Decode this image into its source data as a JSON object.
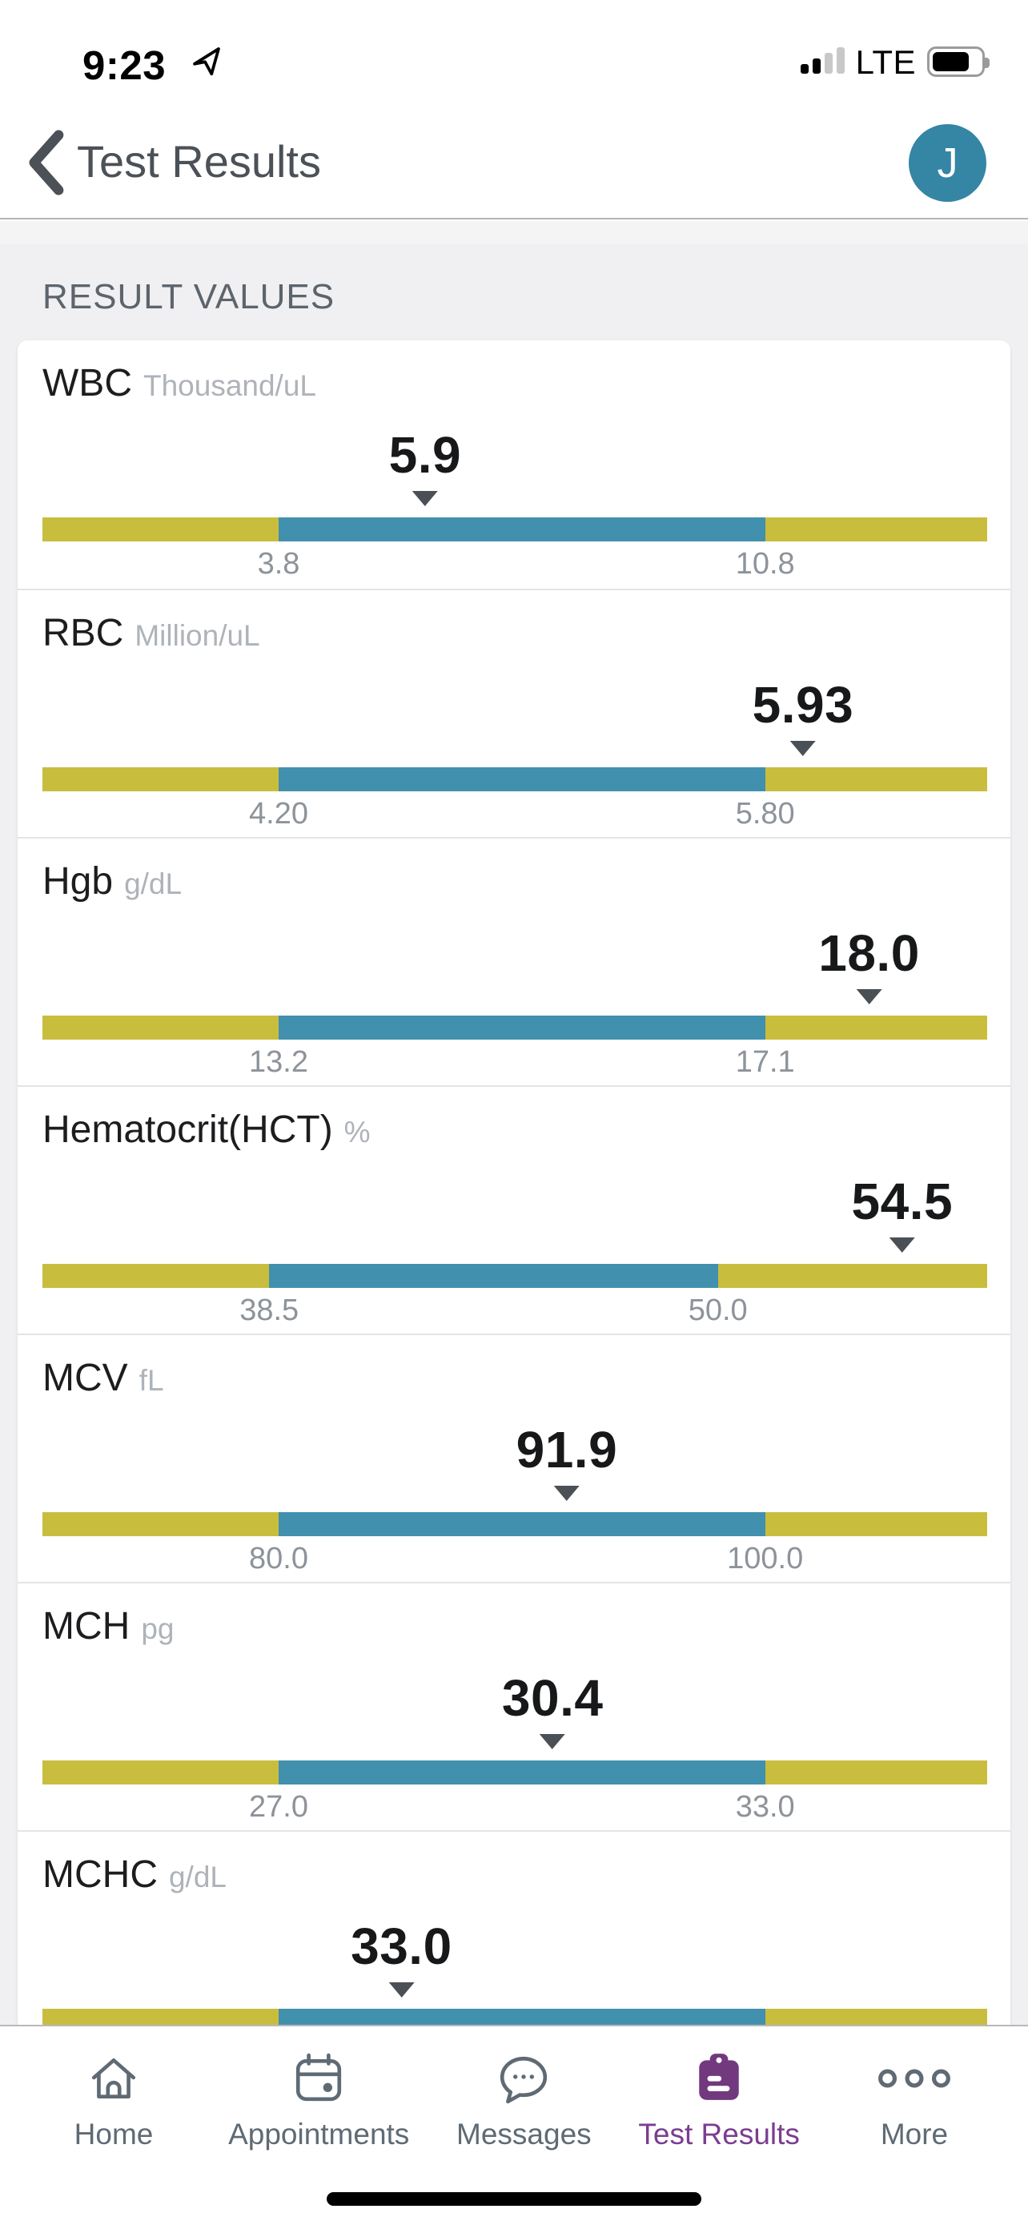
{
  "status_bar": {
    "time": "9:23",
    "network": "LTE"
  },
  "header": {
    "title": "Test Results",
    "avatar_initial": "J"
  },
  "section_title": "RESULT VALUES",
  "results": [
    {
      "name": "WBC",
      "unit": "Thousand/uL",
      "value": "5.9",
      "low_label": "3.8",
      "high_label": "10.8",
      "low_pct": 25,
      "high_pct": 76.5,
      "marker_pct": 40.5
    },
    {
      "name": "RBC",
      "unit": "Million/uL",
      "value": "5.93",
      "low_label": "4.20",
      "high_label": "5.80",
      "low_pct": 25,
      "high_pct": 76.5,
      "marker_pct": 80.5
    },
    {
      "name": "Hgb",
      "unit": "g/dL",
      "value": "18.0",
      "low_label": "13.2",
      "high_label": "17.1",
      "low_pct": 25,
      "high_pct": 76.5,
      "marker_pct": 87.5
    },
    {
      "name": "Hematocrit(HCT)",
      "unit": "%",
      "value": "54.5",
      "low_label": "38.5",
      "high_label": "50.0",
      "low_pct": 24,
      "high_pct": 71.5,
      "marker_pct": 91
    },
    {
      "name": "MCV",
      "unit": "fL",
      "value": "91.9",
      "low_label": "80.0",
      "high_label": "100.0",
      "low_pct": 25,
      "high_pct": 76.5,
      "marker_pct": 55.5
    },
    {
      "name": "MCH",
      "unit": "pg",
      "value": "30.4",
      "low_label": "27.0",
      "high_label": "33.0",
      "low_pct": 25,
      "high_pct": 76.5,
      "marker_pct": 54
    },
    {
      "name": "MCHC",
      "unit": "g/dL",
      "value": "33.0",
      "low_pct": 25,
      "high_pct": 76.5,
      "marker_pct": 38,
      "truncated": true
    }
  ],
  "tab_bar": {
    "active": "Test Results",
    "items": [
      {
        "label": "Home",
        "icon": "home-icon"
      },
      {
        "label": "Appointments",
        "icon": "calendar-icon"
      },
      {
        "label": "Messages",
        "icon": "messages-icon"
      },
      {
        "label": "Test Results",
        "icon": "clipboard-icon"
      },
      {
        "label": "More",
        "icon": "ellipsis-icon"
      }
    ]
  },
  "colors": {
    "abnormal_yellow": "#c9bd3e",
    "normal_blue": "#4190ae",
    "active_purple": "#7b3d90",
    "avatar_teal": "#3585a4"
  }
}
